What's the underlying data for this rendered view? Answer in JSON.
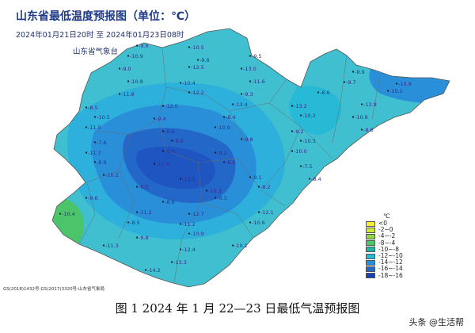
{
  "map": {
    "title": "山东省最低温度预报图（单位：℃）",
    "period": "2024年01月21日20时 至 2024年01月23日08时",
    "source": "山东省气象台",
    "credit": "GS(2018)1432号-GS(2017)3320号-山东省气象局",
    "unit": "℃",
    "legend": [
      {
        "label": "<0",
        "color": "#f2ee3a"
      },
      {
        "label": "-2~0",
        "color": "#cde63a"
      },
      {
        "label": "-4~-2",
        "color": "#8fd642"
      },
      {
        "label": "-8~-4",
        "color": "#4cc46a"
      },
      {
        "label": "-10~-8",
        "color": "#22b59e"
      },
      {
        "label": "-12~-10",
        "color": "#27b9d6"
      },
      {
        "label": "-14~-12",
        "color": "#2a8fd9"
      },
      {
        "label": "-16~-14",
        "color": "#2367c9"
      },
      {
        "label": "-18~-16",
        "color": "#1a3fb0"
      }
    ],
    "temperatures": [
      "-9.6",
      "-10.5",
      "-10.9",
      "-9.6",
      "-9.5",
      "-9.0",
      "-12.5",
      "-13.0",
      "-9.9",
      "-10.8",
      "-10.4",
      "-11.6",
      "-9.7",
      "-10.9",
      "-11.8",
      "-12.2",
      "-9.3",
      "-8.6",
      "-10.2",
      "-8.5",
      "-12.0",
      "-13.4",
      "-13.2",
      "-12.9",
      "-10.5",
      "-9.4",
      "-8.4",
      "-10.2",
      "-10.8",
      "-11.5",
      "-9.9",
      "-10.9",
      "-9.2",
      "-8.6",
      "-7.6",
      "-9.0",
      "-9.8",
      "-10.3",
      "-11.7",
      "-9.4",
      "-9.2",
      "-10.0",
      "-8.9",
      "-11.4",
      "-6.6",
      "-7.5",
      "-10.2",
      "-13.5",
      "-9.1",
      "-8.4",
      "-9.5",
      "-10.3",
      "-8.2",
      "-9.6",
      "-8.6",
      "-9.3",
      "-10.4",
      "-11.2",
      "-12.7",
      "-12.1",
      "-8.5",
      "-11.2",
      "-10.6",
      "-9.8",
      "-10.9",
      "-11.3",
      "-12.4",
      "-10.1",
      "-13.3",
      "-14.2"
    ]
  },
  "caption": "图 1 2024 年 1 月 22—23 日最低气温预报图",
  "watermark": "头条 @生活帮"
}
